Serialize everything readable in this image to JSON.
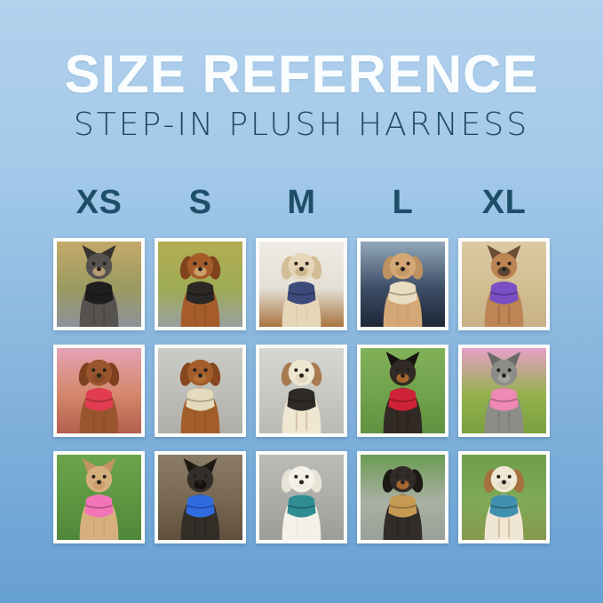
{
  "page": {
    "bg_top": "#b2d1ed",
    "bg_bottom": "#66a0d2"
  },
  "header": {
    "title": "SIZE REFERENCE",
    "subtitle": "STEP-IN PLUSH HARNESS",
    "title_color": "#fafdfe",
    "subtitle_color": "#1d4b64"
  },
  "sizes": {
    "labels": [
      "XS",
      "S",
      "M",
      "L",
      "XL"
    ],
    "label_color": "#1e4f68"
  },
  "grid": {
    "rows": [
      [
        {
          "size": "XS",
          "dog": "grey schnauzer mix on autumn trail",
          "harness": "black",
          "art": {
            "coat": "#555250",
            "ear": "#37342f",
            "muzzle": "#b49a72",
            "harness": "#1f1d1c",
            "ears": "up",
            "bg": [
              "#c4a96b",
              "#9b9a60",
              "#8d929a"
            ]
          }
        },
        {
          "size": "S",
          "dog": "red dachshund in yellow foliage",
          "harness": "black",
          "art": {
            "coat": "#a55c2a",
            "ear": "#7f431d",
            "muzzle": "#c9a06a",
            "harness": "#2a2724",
            "ears": "down",
            "bg": [
              "#b4ad52",
              "#9eab55",
              "#9aa0a2"
            ]
          }
        },
        {
          "size": "M",
          "dog": "cream shih tzu on wood floor",
          "harness": "navy",
          "art": {
            "coat": "#e6d6b8",
            "ear": "#d2bd97",
            "muzzle": "#cdb68c",
            "harness": "#3c4a7c",
            "ears": "down",
            "bg": [
              "#efece6",
              "#e4dfd5",
              "#a8743f"
            ]
          }
        },
        {
          "size": "L",
          "dog": "apricot doodle in car seat",
          "harness": "cream",
          "art": {
            "coat": "#d3a876",
            "ear": "#bd9160",
            "muzzle": "#c59a67",
            "harness": "#e9ddc2",
            "ears": "down",
            "bg": [
              "#93a8bb",
              "#3c4d66",
              "#1e2836"
            ]
          }
        },
        {
          "size": "XL",
          "dog": "fawn french bulldog on sand",
          "harness": "purple",
          "art": {
            "coat": "#bd8553",
            "ear": "#6d4c36",
            "muzzle": "#5d4434",
            "harness": "#7a4ec4",
            "ears": "up",
            "bg": [
              "#dccaa4",
              "#d2bd92",
              "#c7b086"
            ]
          }
        }
      ],
      [
        {
          "size": "XS",
          "dog": "brown cavapoo in autumn leaves",
          "harness": "red",
          "art": {
            "coat": "#99552d",
            "ear": "#7c421f",
            "muzzle": "#8a4c26",
            "harness": "#e23c50",
            "ears": "down",
            "bg": [
              "#e5a2b4",
              "#d4876a",
              "#b35f4e"
            ]
          }
        },
        {
          "size": "S",
          "dog": "ruby cavalier on sidewalk",
          "harness": "cream",
          "art": {
            "coat": "#a25d2a",
            "ear": "#86471f",
            "muzzle": "#b07038",
            "harness": "#e6dabd",
            "ears": "down",
            "bg": [
              "#cbcbc6",
              "#bdbdb8",
              "#aeaea9"
            ]
          }
        },
        {
          "size": "M",
          "dog": "aussie puppy on concrete",
          "harness": "black",
          "art": {
            "coat": "#efe7d2",
            "ear": "#a87a50",
            "muzzle": "#e3d7bd",
            "harness": "#2d2a27",
            "ears": "down",
            "bg": [
              "#d6d6d2",
              "#c8c8c3",
              "#babab5"
            ]
          }
        },
        {
          "size": "L",
          "dog": "black and tan min pin on grass",
          "harness": "red",
          "art": {
            "coat": "#322a24",
            "ear": "#191512",
            "muzzle": "#a5672f",
            "harness": "#ce2236",
            "ears": "up",
            "bg": [
              "#82b15a",
              "#70a14b",
              "#5f9140"
            ]
          }
        },
        {
          "size": "XL",
          "dog": "grey schnauzer by pink flowers",
          "harness": "pink",
          "art": {
            "coat": "#8c8c89",
            "ear": "#6a6a67",
            "muzzle": "#a5a5a0",
            "harness": "#ef89b5",
            "ears": "up",
            "bg": [
              "#e79fc6",
              "#94b14e",
              "#7ba03f"
            ]
          }
        }
      ],
      [
        {
          "size": "XS",
          "dog": "tan chihuahua on grass",
          "harness": "pink",
          "art": {
            "coat": "#d6b07c",
            "ear": "#c09462",
            "muzzle": "#c9a06a",
            "harness": "#f275b8",
            "ears": "up",
            "bg": [
              "#6aa44c",
              "#5c9641",
              "#4f873a"
            ]
          }
        },
        {
          "size": "S",
          "dog": "brussels griffon close up",
          "harness": "blue",
          "art": {
            "coat": "#332e28",
            "ear": "#1d1915",
            "muzzle": "#15120f",
            "harness": "#2f6ce0",
            "ears": "up",
            "bg": [
              "#8b7c67",
              "#776750",
              "#604f3d"
            ]
          }
        },
        {
          "size": "M",
          "dog": "white bichon on pavers",
          "harness": "teal",
          "art": {
            "coat": "#f4f1e9",
            "ear": "#e7e3d6",
            "muzzle": "#efece2",
            "harness": "#2e8c92",
            "ears": "down",
            "bg": [
              "#bcbcb7",
              "#acaca7",
              "#9d9d98"
            ]
          }
        },
        {
          "size": "L",
          "dog": "dachshund carrying stick on path",
          "harness": "tan",
          "art": {
            "coat": "#322c28",
            "ear": "#1d1915",
            "muzzle": "#a5672f",
            "harness": "#c79a53",
            "ears": "down",
            "bg": [
              "#6a9c53",
              "#a9b0a4",
              "#98a197"
            ]
          }
        },
        {
          "size": "XL",
          "dog": "beagle on grass with leaves",
          "harness": "teal",
          "art": {
            "coat": "#efe6d3",
            "ear": "#a5713f",
            "muzzle": "#e7dcc4",
            "harness": "#3f90ae",
            "ears": "down",
            "bg": [
              "#6f9e4a",
              "#7fa957",
              "#87994c"
            ]
          }
        }
      ]
    ]
  }
}
